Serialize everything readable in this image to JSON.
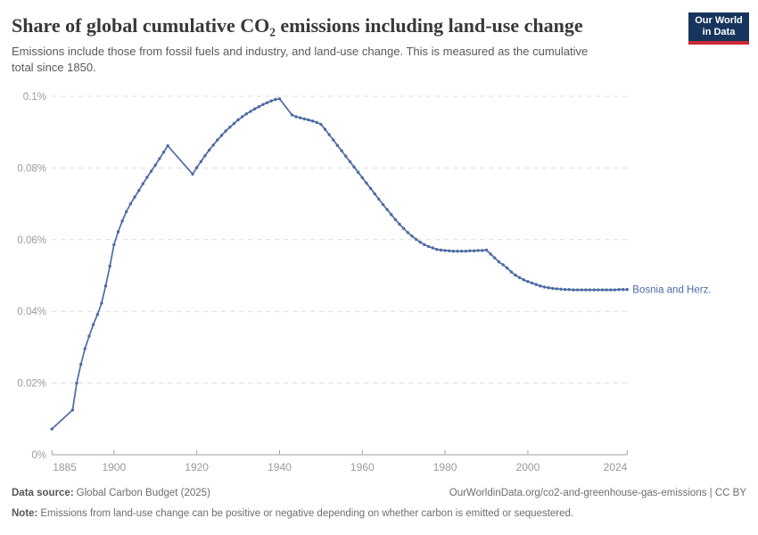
{
  "header": {
    "title": "Share of global cumulative CO₂ emissions including land-use change",
    "subtitle": "Emissions include those from fossil fuels and industry, and land-use change. This is measured as the cumulative total since 1850.",
    "logo": {
      "line1": "Our World",
      "line2": "in Data",
      "bg_color": "#17355c",
      "accent_color": "#cb2b35"
    }
  },
  "footer": {
    "data_source_label": "Data source:",
    "data_source_value": "Global Carbon Budget (2025)",
    "link_text": "OurWorldinData.org/co2-and-greenhouse-gas-emissions | CC BY",
    "note_label": "Note:",
    "note_value": "Emissions from land-use change can be positive or negative depending on whether carbon is emitted or sequestered."
  },
  "chart_data": {
    "type": "line",
    "title": "Share of global cumulative CO₂ emissions including land-use change",
    "xlabel": "",
    "ylabel": "",
    "unit": "%",
    "xlim": [
      1885,
      2024
    ],
    "ylim": [
      0,
      0.1
    ],
    "grid": "horizontal-dashed",
    "legend_position": "end-of-line-label",
    "line_color": "#4d6ba4",
    "axis_color": "#a3a3a3",
    "grid_color": "#dcdcdc",
    "tick_label_color": "#9a9a9a",
    "y_ticks": [
      {
        "label": "0%",
        "value": 0
      },
      {
        "label": "0.02%",
        "value": 0.02
      },
      {
        "label": "0.04%",
        "value": 0.04
      },
      {
        "label": "0.06%",
        "value": 0.06
      },
      {
        "label": "0.08%",
        "value": 0.08
      },
      {
        "label": "0.1%",
        "value": 0.1
      }
    ],
    "x_ticks": [
      {
        "label": "1885",
        "year": 1885
      },
      {
        "label": "1900",
        "year": 1900
      },
      {
        "label": "1920",
        "year": 1920
      },
      {
        "label": "1940",
        "year": 1940
      },
      {
        "label": "1960",
        "year": 1960
      },
      {
        "label": "1980",
        "year": 1980
      },
      {
        "label": "2000",
        "year": 2000
      },
      {
        "label": "2024",
        "year": 2024
      }
    ],
    "series": [
      {
        "name": "Bosnia and Herz.",
        "points": [
          [
            1885,
            0.0072
          ],
          [
            1890,
            0.0125
          ],
          [
            1891,
            0.02
          ],
          [
            1892,
            0.0252
          ],
          [
            1893,
            0.0296
          ],
          [
            1894,
            0.0331
          ],
          [
            1895,
            0.0363
          ],
          [
            1896,
            0.0391
          ],
          [
            1897,
            0.0423
          ],
          [
            1898,
            0.0471
          ],
          [
            1899,
            0.0526
          ],
          [
            1900,
            0.0586
          ],
          [
            1901,
            0.0622
          ],
          [
            1902,
            0.0652
          ],
          [
            1903,
            0.0678
          ],
          [
            1904,
            0.07
          ],
          [
            1905,
            0.0719
          ],
          [
            1906,
            0.0737
          ],
          [
            1907,
            0.0756
          ],
          [
            1908,
            0.0774
          ],
          [
            1909,
            0.0791
          ],
          [
            1910,
            0.0808
          ],
          [
            1911,
            0.0826
          ],
          [
            1912,
            0.0844
          ],
          [
            1913,
            0.0862
          ],
          [
            1919,
            0.0783
          ],
          [
            1920,
            0.0801
          ],
          [
            1921,
            0.0818
          ],
          [
            1922,
            0.0834
          ],
          [
            1923,
            0.085
          ],
          [
            1924,
            0.0864
          ],
          [
            1925,
            0.0878
          ],
          [
            1926,
            0.0891
          ],
          [
            1927,
            0.0903
          ],
          [
            1928,
            0.0914
          ],
          [
            1929,
            0.0924
          ],
          [
            1930,
            0.0934
          ],
          [
            1931,
            0.0943
          ],
          [
            1932,
            0.0951
          ],
          [
            1933,
            0.0958
          ],
          [
            1934,
            0.0965
          ],
          [
            1935,
            0.0971
          ],
          [
            1936,
            0.0977
          ],
          [
            1937,
            0.0982
          ],
          [
            1938,
            0.0987
          ],
          [
            1939,
            0.0991
          ],
          [
            1940,
            0.0993
          ],
          [
            1943,
            0.0948
          ],
          [
            1944,
            0.0943
          ],
          [
            1945,
            0.094
          ],
          [
            1946,
            0.0937
          ],
          [
            1947,
            0.0934
          ],
          [
            1948,
            0.0931
          ],
          [
            1949,
            0.0927
          ],
          [
            1950,
            0.0922
          ],
          [
            1951,
            0.0908
          ],
          [
            1952,
            0.0893
          ],
          [
            1953,
            0.0878
          ],
          [
            1954,
            0.0863
          ],
          [
            1955,
            0.0848
          ],
          [
            1956,
            0.0833
          ],
          [
            1957,
            0.0818
          ],
          [
            1958,
            0.0803
          ],
          [
            1959,
            0.0788
          ],
          [
            1960,
            0.0773
          ],
          [
            1961,
            0.0758
          ],
          [
            1962,
            0.0743
          ],
          [
            1963,
            0.0728
          ],
          [
            1964,
            0.0713
          ],
          [
            1965,
            0.0698
          ],
          [
            1966,
            0.0684
          ],
          [
            1967,
            0.067
          ],
          [
            1968,
            0.0656
          ],
          [
            1969,
            0.0643
          ],
          [
            1970,
            0.0631
          ],
          [
            1971,
            0.062
          ],
          [
            1972,
            0.061
          ],
          [
            1973,
            0.0601
          ],
          [
            1974,
            0.0593
          ],
          [
            1975,
            0.0586
          ],
          [
            1976,
            0.0581
          ],
          [
            1977,
            0.0577
          ],
          [
            1978,
            0.0573
          ],
          [
            1979,
            0.0571
          ],
          [
            1980,
            0.057
          ],
          [
            1981,
            0.0569
          ],
          [
            1982,
            0.0568
          ],
          [
            1983,
            0.0568
          ],
          [
            1984,
            0.0568
          ],
          [
            1985,
            0.0568
          ],
          [
            1986,
            0.0569
          ],
          [
            1987,
            0.0569
          ],
          [
            1988,
            0.057
          ],
          [
            1989,
            0.057
          ],
          [
            1990,
            0.0571
          ],
          [
            1991,
            0.056
          ],
          [
            1992,
            0.0549
          ],
          [
            1993,
            0.0538
          ],
          [
            1994,
            0.053
          ],
          [
            1995,
            0.0521
          ],
          [
            1996,
            0.051
          ],
          [
            1997,
            0.0501
          ],
          [
            1998,
            0.0494
          ],
          [
            1999,
            0.0488
          ],
          [
            2000,
            0.0483
          ],
          [
            2001,
            0.0479
          ],
          [
            2002,
            0.0475
          ],
          [
            2003,
            0.0471
          ],
          [
            2004,
            0.0468
          ],
          [
            2005,
            0.0466
          ],
          [
            2006,
            0.0464
          ],
          [
            2007,
            0.0463
          ],
          [
            2008,
            0.0462
          ],
          [
            2009,
            0.0461
          ],
          [
            2010,
            0.0461
          ],
          [
            2011,
            0.046
          ],
          [
            2012,
            0.046
          ],
          [
            2013,
            0.046
          ],
          [
            2014,
            0.046
          ],
          [
            2015,
            0.046
          ],
          [
            2016,
            0.046
          ],
          [
            2017,
            0.046
          ],
          [
            2018,
            0.046
          ],
          [
            2019,
            0.046
          ],
          [
            2020,
            0.046
          ],
          [
            2021,
            0.046
          ],
          [
            2022,
            0.0461
          ],
          [
            2023,
            0.0461
          ],
          [
            2024,
            0.0461
          ]
        ]
      }
    ]
  }
}
